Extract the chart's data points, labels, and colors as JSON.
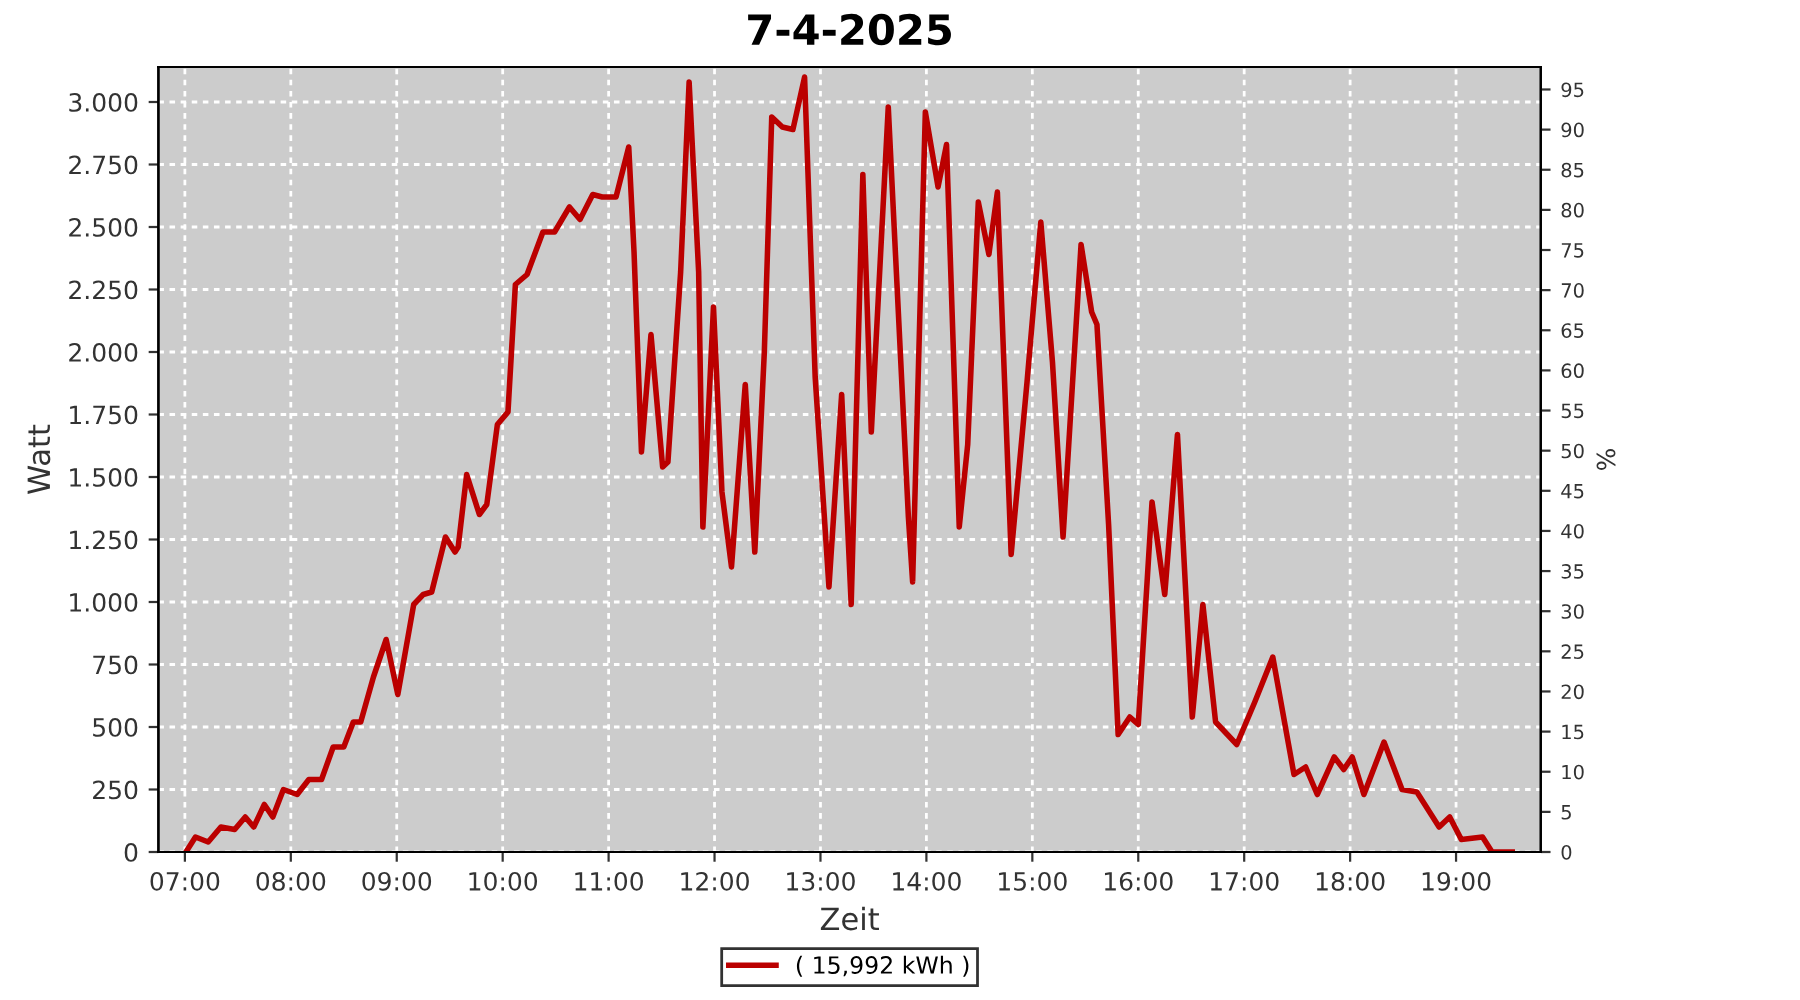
{
  "chart_data": {
    "type": "line",
    "title": "7-4-2025",
    "xlabel": "Zeit",
    "ylabel": "Watt",
    "y2label": "%",
    "xlim": [
      6.75,
      19.8
    ],
    "xticks": [
      {
        "value": 7,
        "label": "07:00"
      },
      {
        "value": 8,
        "label": "08:00"
      },
      {
        "value": 9,
        "label": "09:00"
      },
      {
        "value": 10,
        "label": "10:00"
      },
      {
        "value": 11,
        "label": "11:00"
      },
      {
        "value": 12,
        "label": "12:00"
      },
      {
        "value": 13,
        "label": "13:00"
      },
      {
        "value": 14,
        "label": "14:00"
      },
      {
        "value": 15,
        "label": "15:00"
      },
      {
        "value": 16,
        "label": "16:00"
      },
      {
        "value": 17,
        "label": "17:00"
      },
      {
        "value": 18,
        "label": "18:00"
      },
      {
        "value": 19,
        "label": "19:00"
      }
    ],
    "ylim": [
      0,
      3140
    ],
    "yticks": [
      0,
      250,
      500,
      750,
      {
        "value": 1000,
        "label": "1.000"
      },
      {
        "value": 1250,
        "label": "1.250"
      },
      {
        "value": 1500,
        "label": "1.500"
      },
      {
        "value": 1750,
        "label": "1.750"
      },
      {
        "value": 2000,
        "label": "2.000"
      },
      {
        "value": 2250,
        "label": "2.250"
      },
      {
        "value": 2500,
        "label": "2.500"
      },
      {
        "value": 2750,
        "label": "2.750"
      },
      {
        "value": 3000,
        "label": "3.000"
      }
    ],
    "y2lim": [
      0,
      97.8
    ],
    "y2ticks": [
      0,
      5,
      10,
      15,
      20,
      25,
      30,
      35,
      40,
      45,
      50,
      55,
      60,
      65,
      70,
      75,
      80,
      85,
      90,
      95
    ],
    "grid": true,
    "legend": "bottom",
    "line_style": "solid",
    "series": [
      {
        "name": "( 15,992 kWh )",
        "color": "#bb0000",
        "x": [
          7.01,
          7.1,
          7.22,
          7.34,
          7.47,
          7.57,
          7.65,
          7.75,
          7.83,
          7.93,
          8.06,
          8.17,
          8.29,
          8.4,
          8.5,
          8.59,
          8.66,
          8.78,
          8.9,
          9.01,
          9.16,
          9.25,
          9.33,
          9.46,
          9.55,
          9.58,
          9.66,
          9.78,
          9.85,
          9.95,
          10.05,
          10.12,
          10.23,
          10.38,
          10.49,
          10.63,
          10.73,
          10.85,
          10.94,
          11.07,
          11.19,
          11.24,
          11.31,
          11.4,
          11.51,
          11.56,
          11.68,
          11.76,
          11.85,
          11.89,
          11.99,
          12.07,
          12.16,
          12.29,
          12.38,
          12.47,
          12.54,
          12.64,
          12.74,
          12.85,
          12.95,
          13.08,
          13.2,
          13.29,
          13.4,
          13.48,
          13.64,
          13.83,
          13.87,
          13.99,
          14.11,
          14.19,
          14.31,
          14.39,
          14.49,
          14.59,
          14.67,
          14.8,
          14.95,
          15.08,
          15.19,
          15.29,
          15.46,
          15.56,
          15.61,
          15.72,
          15.81,
          15.92,
          16.0,
          16.13,
          16.25,
          16.37,
          16.51,
          16.61,
          16.73,
          16.93,
          17.1,
          17.27,
          17.47,
          17.58,
          17.69,
          17.85,
          17.94,
          18.02,
          18.13,
          18.32,
          18.49,
          18.63,
          18.84,
          18.94,
          19.05,
          19.25,
          19.34,
          19.53
        ],
        "values": [
          0,
          60,
          40,
          100,
          90,
          140,
          100,
          190,
          140,
          250,
          230,
          290,
          290,
          420,
          420,
          520,
          520,
          700,
          850,
          630,
          990,
          1030,
          1040,
          1260,
          1200,
          1220,
          1510,
          1350,
          1390,
          1710,
          1760,
          2270,
          2310,
          2480,
          2480,
          2580,
          2530,
          2630,
          2620,
          2620,
          2820,
          2400,
          1600,
          2070,
          1540,
          1560,
          2320,
          3080,
          2320,
          1300,
          2180,
          1440,
          1140,
          1870,
          1200,
          2000,
          2940,
          2900,
          2890,
          3100,
          1900,
          1060,
          1830,
          990,
          2710,
          1680,
          2980,
          1340,
          1080,
          2960,
          2660,
          2830,
          1300,
          1630,
          2600,
          2390,
          2640,
          1190,
          1880,
          2520,
          1960,
          1260,
          2430,
          2160,
          2110,
          1310,
          470,
          540,
          510,
          1400,
          1030,
          1670,
          540,
          990,
          520,
          430,
          600,
          780,
          310,
          340,
          230,
          380,
          330,
          380,
          230,
          440,
          250,
          240,
          100,
          140,
          50,
          60,
          0,
          0
        ]
      }
    ]
  }
}
